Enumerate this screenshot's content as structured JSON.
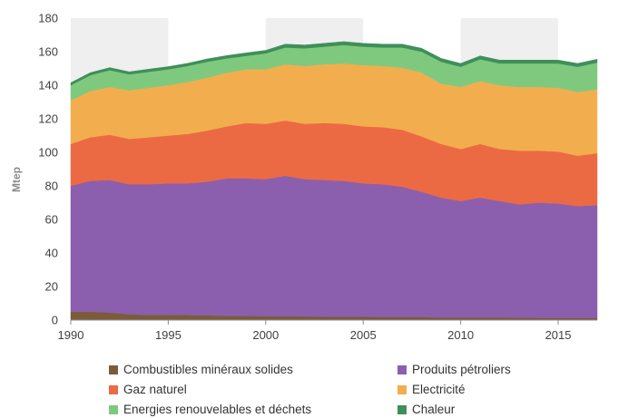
{
  "chart_data": {
    "type": "area",
    "stacked": true,
    "title": "",
    "xlabel": "",
    "ylabel": "Mtep",
    "xlim": [
      1990,
      2017
    ],
    "ylim": [
      0,
      180
    ],
    "x_ticks": [
      "1990",
      "1995",
      "2000",
      "2005",
      "2010",
      "2015"
    ],
    "y_ticks": [
      "0",
      "20",
      "40",
      "60",
      "80",
      "100",
      "120",
      "140",
      "160",
      "180"
    ],
    "grid": "alternating vertical bands",
    "legend_position": "bottom",
    "x": [
      1990,
      1991,
      1992,
      1993,
      1994,
      1995,
      1996,
      1997,
      1998,
      1999,
      2000,
      2001,
      2002,
      2003,
      2004,
      2005,
      2006,
      2007,
      2008,
      2009,
      2010,
      2011,
      2012,
      2013,
      2014,
      2015,
      2016,
      2017
    ],
    "series": [
      {
        "name": "Combustibles minéraux solides",
        "color": "#7b5b3a",
        "values": [
          5,
          5,
          4.5,
          3.5,
          3,
          3,
          3,
          2.8,
          2.5,
          2.5,
          2.3,
          2.3,
          2.2,
          2,
          2,
          2,
          1.8,
          1.8,
          1.8,
          1.5,
          1.5,
          1.5,
          1.5,
          1.4,
          1.3,
          1.3,
          1.3,
          1.3
        ]
      },
      {
        "name": "Produits pétroliers",
        "color": "#8b5fad",
        "values": [
          75,
          78,
          79,
          77.5,
          78,
          78.5,
          78.5,
          79.7,
          82,
          82,
          81.7,
          83.7,
          81.8,
          81.5,
          81,
          79.5,
          79.2,
          77.7,
          74.7,
          71.5,
          69.5,
          71.5,
          69.5,
          67.6,
          68.7,
          68.2,
          66.7,
          67.2
        ]
      },
      {
        "name": "Gaz naturel",
        "color": "#ec6a43",
        "values": [
          25,
          26,
          27,
          27,
          28,
          28.5,
          29.5,
          30.5,
          31,
          33,
          33,
          33,
          33,
          34,
          34,
          34,
          34,
          34,
          33,
          32,
          31,
          32,
          31,
          32,
          31,
          31,
          30,
          31
        ]
      },
      {
        "name": "Electricité",
        "color": "#f2ae4e",
        "values": [
          26,
          27.5,
          28.5,
          29,
          29.5,
          30,
          31,
          31.5,
          32,
          32,
          32.5,
          33.5,
          34.5,
          35,
          36,
          36.5,
          36.5,
          37,
          38,
          36,
          37,
          37.5,
          38,
          38,
          38,
          38,
          38,
          38
        ]
      },
      {
        "name": "Energies renouvelables et déchets",
        "color": "#7fc97f",
        "values": [
          9,
          9.5,
          10,
          9.5,
          9.5,
          9.5,
          9.5,
          9.5,
          8.5,
          8,
          9.5,
          10,
          10.5,
          10.5,
          11,
          11,
          11,
          12,
          12.5,
          13,
          12,
          13,
          13,
          14,
          14,
          14.5,
          15,
          16
        ]
      },
      {
        "name": "Chaleur",
        "color": "#3f8f5a",
        "values": [
          1.5,
          1.5,
          1.5,
          1.5,
          1.6,
          1.6,
          1.6,
          1.7,
          1.7,
          1.8,
          1.8,
          2,
          2,
          2,
          2,
          2,
          2,
          2,
          2,
          2,
          2,
          2,
          2,
          2,
          2,
          2,
          2,
          2
        ]
      }
    ]
  }
}
